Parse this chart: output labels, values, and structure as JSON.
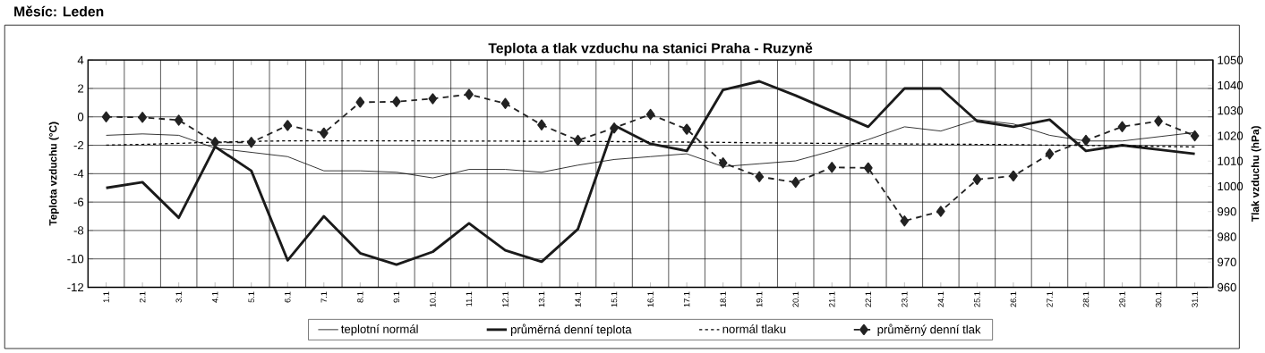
{
  "chart_data": {
    "type": "line",
    "title": "Teplota a tlak vzduchu na stanici Praha - Ruzyně",
    "annotations": [
      "Měsíc: Leden"
    ],
    "ylabel": "Teplota vzduchu (°C)",
    "y2label": "Tlak vzduchu (hPa)",
    "categories": [
      "1.1",
      "2.1",
      "3.1",
      "4.1",
      "5.1",
      "6.1",
      "7.1",
      "8.1",
      "9.1",
      "10.1",
      "11.1",
      "12.1",
      "13.1",
      "14.1",
      "15.1",
      "16.1",
      "17.1",
      "18.1",
      "19.1",
      "20.1",
      "21.1",
      "22.1",
      "23.1",
      "24.1",
      "25.1",
      "26.1",
      "27.1",
      "28.1",
      "29.1",
      "30.1",
      "31.1"
    ],
    "series": [
      {
        "name": "teplotní normál",
        "color": "#000000",
        "line_style": "solid",
        "values": [
          -1.3,
          -1.2,
          -1.3,
          -2.2,
          -2.5,
          -2.8,
          -3.8,
          -3.8,
          -3.9,
          -4.3,
          -3.7,
          -3.7,
          -3.9,
          -3.4,
          -3.0,
          -2.8,
          -2.6,
          -3.5,
          -3.3,
          -3.1,
          -2.4,
          -1.6,
          -0.7,
          -1.0,
          -0.2,
          -0.5,
          -1.3,
          -1.7,
          -1.7,
          -1.4,
          -1.1
        ]
      },
      {
        "name": "průměrná denní teplota",
        "color": "#1a1a1a",
        "line_style": "solid",
        "values": [
          -5.0,
          -4.6,
          -7.1,
          -2.1,
          -3.8,
          -10.1,
          -7.0,
          -9.6,
          -10.4,
          -9.5,
          -7.5,
          -9.4,
          -10.2,
          -7.9,
          -0.6,
          -1.9,
          -2.4,
          1.9,
          2.5,
          1.5,
          0.4,
          -0.7,
          2.0,
          2.0,
          -0.3,
          -0.7,
          -0.2,
          -2.4,
          -2.0,
          -2.3,
          -2.6
        ]
      },
      {
        "name": "normál tlaku",
        "color": "#000000",
        "line_style": "dotted",
        "axis": "y2",
        "values": [
          1016.3,
          1016.6,
          1017.0,
          1017.5,
          1017.8,
          1018.0,
          1018.0,
          1018.0,
          1018.0,
          1018.0,
          1017.9,
          1017.9,
          1017.8,
          1017.8,
          1017.7,
          1017.6,
          1017.5,
          1017.4,
          1017.2,
          1017.1,
          1017.0,
          1016.9,
          1016.8,
          1016.7,
          1016.6,
          1016.5,
          1016.3,
          1016.2,
          1016.0,
          1015.8,
          1015.6
        ]
      },
      {
        "name": "průměrný denní tlak",
        "color": "#222222",
        "line_style": "dashed",
        "marker": "diamond",
        "axis": "y2",
        "values": [
          1027.5,
          1027.3,
          1026.2,
          1017.4,
          1017.4,
          1024.1,
          1021.1,
          1033.3,
          1033.5,
          1034.7,
          1036.4,
          1032.8,
          1024.3,
          1018.2,
          1023.1,
          1028.5,
          1022.6,
          1009.3,
          1003.8,
          1001.6,
          1007.5,
          1007.3,
          986.3,
          990.1,
          1002.7,
          1004.1,
          1012.8,
          1018.2,
          1023.6,
          1025.8,
          1020.0
        ]
      }
    ],
    "ylim": [
      -12,
      4
    ],
    "yticks": [
      -12,
      -10,
      -8,
      -6,
      -4,
      -2,
      0,
      2,
      4
    ],
    "y2lim": [
      960,
      1050
    ],
    "y2ticks": [
      960,
      970,
      980,
      990,
      1000,
      1010,
      1020,
      1030,
      1040,
      1050
    ],
    "grid": true,
    "legend": "bottom"
  }
}
